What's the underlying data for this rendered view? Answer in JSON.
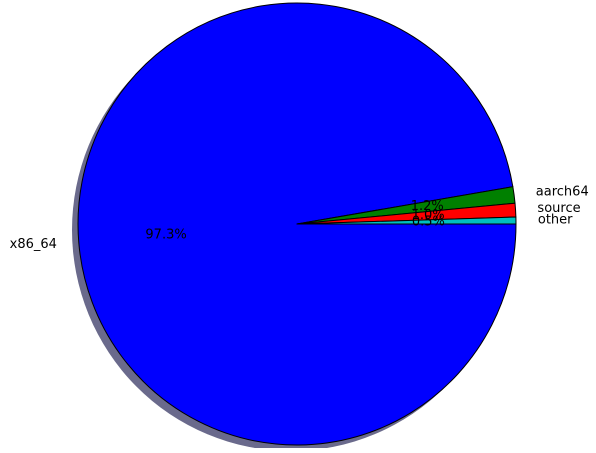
{
  "chart_data": {
    "type": "pie",
    "title": "",
    "shadow": true,
    "slices": [
      {
        "label": "x86_64",
        "value": 97.3,
        "pct_label": "97.3%",
        "color": "#0000ff"
      },
      {
        "label": "aarch64",
        "value": 1.2,
        "pct_label": "1.2%",
        "color": "#008000"
      },
      {
        "label": "source",
        "value": 1.0,
        "pct_label": "1.0%",
        "color": "#ff0000"
      },
      {
        "label": "other",
        "value": 0.5,
        "pct_label": "0.5%",
        "color": "#00bfbf"
      }
    ]
  }
}
